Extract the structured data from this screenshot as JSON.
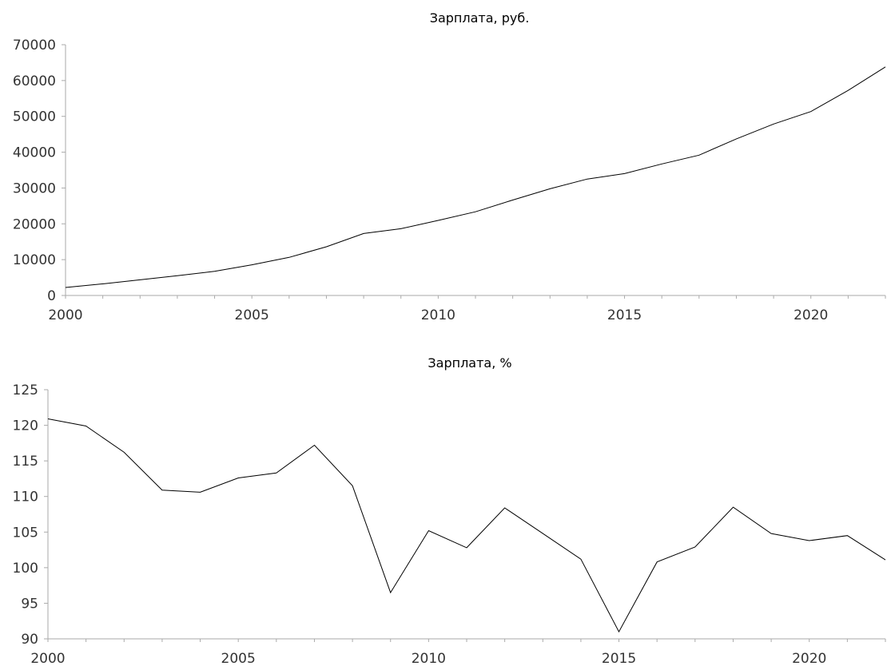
{
  "chart_data": [
    {
      "type": "line",
      "title": "Зарплата, руб.",
      "xlabel": "",
      "ylabel": "",
      "x": [
        2000,
        2001,
        2002,
        2003,
        2004,
        2005,
        2006,
        2007,
        2008,
        2009,
        2010,
        2011,
        2012,
        2013,
        2014,
        2015,
        2016,
        2017,
        2018,
        2019,
        2020,
        2021,
        2022
      ],
      "series": [
        {
          "values": [
            2223,
            3240,
            4360,
            5499,
            6740,
            8555,
            10634,
            13593,
            17290,
            18638,
            20952,
            23369,
            26629,
            29792,
            32495,
            34030,
            36709,
            39167,
            43724,
            47867,
            51344,
            57244,
            63801
          ]
        }
      ],
      "xlim": [
        2000,
        2022
      ],
      "ylim": [
        0,
        70000
      ],
      "xticks": [
        "2000",
        "2005",
        "2010",
        "2015",
        "2020"
      ],
      "yticks": [
        "0",
        "10000",
        "20000",
        "30000",
        "40000",
        "50000",
        "60000",
        "70000"
      ],
      "grid": false,
      "color": "#000000"
    },
    {
      "type": "line",
      "title": "Зарплата, %",
      "xlabel": "",
      "ylabel": "",
      "x": [
        2000,
        2001,
        2002,
        2003,
        2004,
        2005,
        2006,
        2007,
        2008,
        2009,
        2010,
        2011,
        2012,
        2013,
        2014,
        2015,
        2016,
        2017,
        2018,
        2019,
        2020,
        2021,
        2022
      ],
      "series": [
        {
          "values": [
            120.9,
            119.9,
            116.2,
            110.9,
            110.6,
            112.6,
            113.3,
            117.2,
            111.5,
            96.5,
            105.2,
            102.8,
            108.4,
            104.8,
            101.2,
            91.0,
            100.8,
            102.9,
            108.5,
            104.8,
            103.8,
            104.5,
            101.1
          ]
        }
      ],
      "xlim": [
        2000,
        2022
      ],
      "ylim": [
        90,
        125
      ],
      "xticks": [
        "2000",
        "2005",
        "2010",
        "2015",
        "2020"
      ],
      "yticks": [
        "90",
        "95",
        "100",
        "105",
        "110",
        "115",
        "120",
        "125"
      ],
      "grid": false,
      "color": "#000000"
    }
  ]
}
